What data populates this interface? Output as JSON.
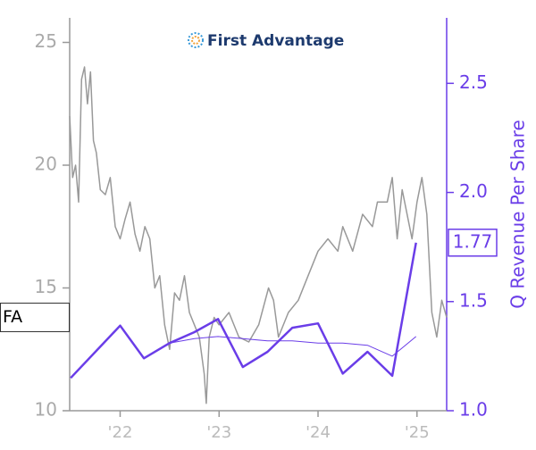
{
  "chart_data": {
    "type": "line",
    "title": "First Advantage",
    "ticker": "FA",
    "y2label": "Q Revenue Per Share",
    "xlim": [
      2021.49,
      2025.3
    ],
    "xticks": [
      {
        "value": 2022,
        "label": "'22"
      },
      {
        "value": 2023,
        "label": "'23"
      },
      {
        "value": 2024,
        "label": "'24"
      },
      {
        "value": 2025,
        "label": "'25"
      }
    ],
    "ylim": [
      10,
      26
    ],
    "yticks": [
      10,
      15,
      20,
      25
    ],
    "y2lim": [
      1.0,
      2.8
    ],
    "y2ticks": [
      {
        "value": 1,
        "label": "1.0"
      },
      1.5,
      {
        "value": 2,
        "label": "2.0"
      },
      2.5
    ],
    "series": [
      {
        "color": "#999999",
        "x": [
          2021.49,
          2021.52,
          2021.55,
          2021.58,
          2021.61,
          2021.64,
          2021.67,
          2021.7,
          2021.73,
          2021.76,
          2021.8,
          2021.85,
          2021.9,
          2021.95,
          2022.0,
          2022.05,
          2022.1,
          2022.15,
          2022.2,
          2022.25,
          2022.3,
          2022.35,
          2022.4,
          2022.45,
          2022.5,
          2022.55,
          2022.6,
          2022.65,
          2022.7,
          2022.75,
          2022.8,
          2022.85,
          2022.87,
          2022.9,
          2022.95,
          2023.0,
          2023.1,
          2023.2,
          2023.3,
          2023.4,
          2023.5,
          2023.55,
          2023.6,
          2023.7,
          2023.8,
          2023.9,
          2024.0,
          2024.1,
          2024.2,
          2024.25,
          2024.35,
          2024.45,
          2024.55,
          2024.6,
          2024.7,
          2024.75,
          2024.8,
          2024.85,
          2024.95,
          2025.0,
          2025.05,
          2025.1,
          2025.15,
          2025.2,
          2025.25,
          2025.3
        ],
        "values": [
          22,
          19.5,
          20,
          18.5,
          23.5,
          24,
          22.5,
          23.8,
          21,
          20.5,
          19,
          18.8,
          19.5,
          17.5,
          17,
          17.8,
          18.5,
          17.2,
          16.5,
          17.5,
          17,
          15,
          15.5,
          13.5,
          12.5,
          14.8,
          14.5,
          15.5,
          14,
          13.5,
          13,
          11.5,
          10.3,
          13,
          13.8,
          13.5,
          14,
          13,
          12.8,
          13.5,
          15,
          14.5,
          13,
          14,
          14.5,
          15.5,
          16.5,
          17,
          16.5,
          17.5,
          16.5,
          18,
          17.5,
          18.5,
          18.5,
          19.5,
          17,
          19,
          17,
          18.5,
          19.5,
          18,
          14,
          13,
          14.5,
          13.8
        ]
      },
      {
        "color": "#6a3de8",
        "axis": "y2",
        "x": [
          2021.5,
          2022.0,
          2022.24,
          2022.5,
          2022.75,
          2022.99,
          2023.24,
          2023.49,
          2023.74,
          2024.0,
          2024.25,
          2024.5,
          2024.75,
          2024.99
        ],
        "values": [
          1.15,
          1.39,
          1.24,
          1.31,
          1.36,
          1.42,
          1.2,
          1.27,
          1.38,
          1.4,
          1.17,
          1.27,
          1.16,
          1.77
        ]
      },
      {
        "color": "#6a3de8",
        "axis": "y2",
        "x": [
          2022.5,
          2022.75,
          2022.99,
          2023.24,
          2023.49,
          2023.74,
          2024.0,
          2024.25,
          2024.5,
          2024.75,
          2024.99
        ],
        "values": [
          1.31,
          1.33,
          1.34,
          1.33,
          1.32,
          1.32,
          1.31,
          1.31,
          1.3,
          1.25,
          1.34
        ]
      }
    ]
  }
}
